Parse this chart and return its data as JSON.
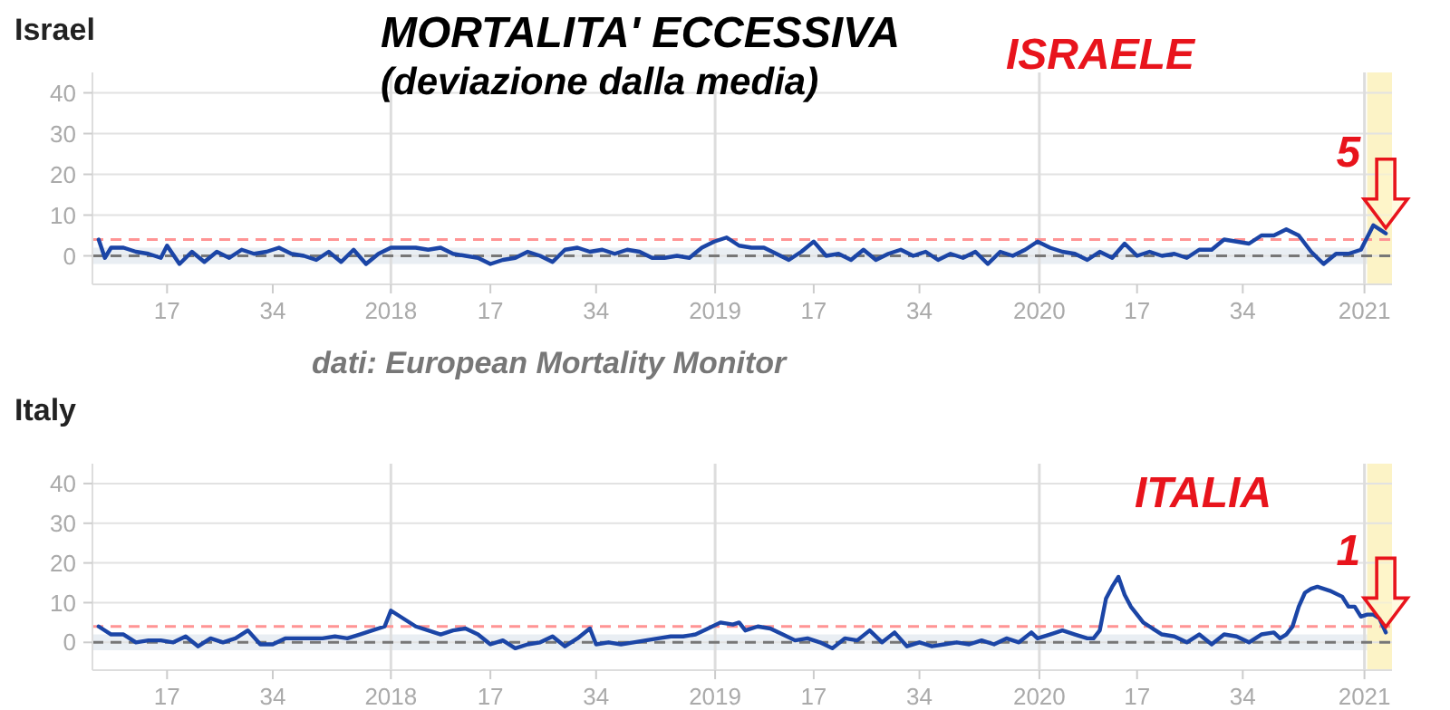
{
  "chart_data": [
    {
      "type": "line",
      "title": "Israel",
      "annotations": [
        "MORTALITA' ECCESSIVA",
        "(deviazione dalla media)",
        "ISRAELE",
        "dati: European Mortality Monitor",
        {
          "text": "5",
          "x": "2021-01-25",
          "y": 5.5
        }
      ],
      "series": [
        {
          "color": "#1b45a6",
          "x": [
            "2017-02-06",
            "2017-02-13",
            "2017-02-20",
            "2017-03-06",
            "2017-03-20",
            "2017-04-03",
            "2017-04-17",
            "2017-04-24",
            "2017-05-08",
            "2017-05-22",
            "2017-06-05",
            "2017-06-19",
            "2017-07-03",
            "2017-07-17",
            "2017-07-31",
            "2017-08-14",
            "2017-08-28",
            "2017-09-11",
            "2017-09-25",
            "2017-10-09",
            "2017-10-23",
            "2017-11-06",
            "2017-11-20",
            "2017-12-04",
            "2017-12-18",
            "2018-01-01",
            "2018-01-15",
            "2018-01-29",
            "2018-02-12",
            "2018-02-26",
            "2018-03-12",
            "2018-03-26",
            "2018-04-09",
            "2018-04-23",
            "2018-05-07",
            "2018-05-21",
            "2018-06-04",
            "2018-06-18",
            "2018-07-02",
            "2018-07-16",
            "2018-07-30",
            "2018-08-13",
            "2018-08-27",
            "2018-09-10",
            "2018-09-24",
            "2018-10-08",
            "2018-10-22",
            "2018-11-05",
            "2018-11-19",
            "2018-12-03",
            "2018-12-17",
            "2018-12-31",
            "2019-01-14",
            "2019-01-28",
            "2019-02-11",
            "2019-02-25",
            "2019-03-11",
            "2019-03-25",
            "2019-04-08",
            "2019-04-22",
            "2019-05-06",
            "2019-05-20",
            "2019-06-03",
            "2019-06-17",
            "2019-07-01",
            "2019-07-15",
            "2019-07-29",
            "2019-08-12",
            "2019-08-26",
            "2019-09-09",
            "2019-09-23",
            "2019-10-07",
            "2019-10-21",
            "2019-11-04",
            "2019-11-18",
            "2019-12-02",
            "2019-12-16",
            "2019-12-30",
            "2020-01-13",
            "2020-01-27",
            "2020-02-10",
            "2020-02-24",
            "2020-03-09",
            "2020-03-23",
            "2020-04-06",
            "2020-04-20",
            "2020-05-04",
            "2020-05-18",
            "2020-06-01",
            "2020-06-15",
            "2020-06-29",
            "2020-07-13",
            "2020-07-27",
            "2020-08-10",
            "2020-08-24",
            "2020-09-07",
            "2020-09-21",
            "2020-10-05",
            "2020-10-19",
            "2020-11-02",
            "2020-11-16",
            "2020-11-30",
            "2020-12-14",
            "2020-12-28",
            "2021-01-11",
            "2021-01-25"
          ],
          "values": [
            4,
            -0.5,
            2,
            2,
            1,
            0.5,
            -0.5,
            2.5,
            -2,
            1,
            -1.5,
            1,
            -0.5,
            1.5,
            0.5,
            1,
            2,
            0.5,
            0,
            -1,
            1,
            -1.5,
            1.5,
            -2,
            0.5,
            2,
            2,
            2,
            1.5,
            2,
            0.5,
            0,
            -0.5,
            -2,
            -1,
            -0.5,
            1,
            0,
            -1.5,
            1.5,
            2,
            1,
            1.5,
            0.5,
            1.5,
            1,
            -0.5,
            -0.5,
            0,
            -0.5,
            2,
            3.5,
            4.5,
            2.5,
            2,
            2,
            0.5,
            -1,
            1,
            3.5,
            0,
            0.5,
            -1,
            1.5,
            -1,
            0.5,
            1.5,
            0,
            1,
            -1,
            0.5,
            -0.5,
            1,
            -2,
            1,
            0,
            1.5,
            3.5,
            2,
            1,
            0.5,
            -1,
            1,
            -0.5,
            3,
            0,
            1,
            0,
            0.5,
            -0.5,
            1.5,
            1.5,
            4,
            3.5,
            3,
            5,
            5,
            6.5,
            5,
            1,
            -2,
            0.5,
            0.5,
            1.5,
            7.5,
            5.5
          ]
        }
      ],
      "xlim": [
        "2017-01-30",
        "2021-02-01"
      ],
      "ylim": [
        -7,
        45
      ],
      "xticks": [
        {
          "value": "2017-04-24",
          "label": "17"
        },
        {
          "value": "2017-08-21",
          "label": "34"
        },
        {
          "value": "2018-01-01",
          "label": "2018"
        },
        {
          "value": "2018-04-23",
          "label": "17"
        },
        {
          "value": "2018-08-20",
          "label": "34"
        },
        {
          "value": "2019-01-01",
          "label": "2019"
        },
        {
          "value": "2019-04-22",
          "label": "17"
        },
        {
          "value": "2019-08-19",
          "label": "34"
        },
        {
          "value": "2020-01-01",
          "label": "2020"
        },
        {
          "value": "2020-04-20",
          "label": "17"
        },
        {
          "value": "2020-08-17",
          "label": "34"
        },
        {
          "value": "2021-01-01",
          "label": "2021"
        }
      ],
      "yticks": [
        0,
        10,
        20,
        30,
        40
      ],
      "grid": "y",
      "ref_lines": [
        {
          "axis": "x",
          "value": "2018-01-01",
          "color": "#dddddd"
        },
        {
          "axis": "x",
          "value": "2019-01-01",
          "color": "#dddddd"
        },
        {
          "axis": "x",
          "value": "2020-01-01",
          "color": "#dddddd"
        },
        {
          "axis": "x",
          "value": "2021-01-01",
          "color": "#dddddd"
        },
        {
          "axis": "y",
          "value": 4,
          "color": "#ff9494",
          "line_style": "dashed"
        },
        {
          "axis": "y",
          "value": 0,
          "color": "#777777",
          "line_style": "dashed"
        }
      ],
      "bands": [
        {
          "axis": "y",
          "from": -2,
          "to": 2,
          "color": "#e9eef3"
        },
        {
          "axis": "x",
          "from": "2021-01-04",
          "to": "2021-02-01",
          "color": "#fcf3c6"
        }
      ]
    },
    {
      "type": "line",
      "title": "Italy",
      "annotations": [
        "ITALIA",
        {
          "text": "1",
          "x": "2021-01-25",
          "y": 2.5
        }
      ],
      "series": [
        {
          "color": "#1b45a6",
          "x": [
            "2017-02-06",
            "2017-02-20",
            "2017-03-06",
            "2017-03-20",
            "2017-04-03",
            "2017-04-17",
            "2017-05-01",
            "2017-05-15",
            "2017-05-29",
            "2017-06-12",
            "2017-06-26",
            "2017-07-10",
            "2017-07-24",
            "2017-08-07",
            "2017-08-21",
            "2017-09-04",
            "2017-09-18",
            "2017-10-02",
            "2017-10-16",
            "2017-10-30",
            "2017-11-13",
            "2017-11-27",
            "2017-12-11",
            "2017-12-25",
            "2018-01-01",
            "2018-01-15",
            "2018-01-29",
            "2018-02-12",
            "2018-02-26",
            "2018-03-12",
            "2018-03-26",
            "2018-04-09",
            "2018-04-23",
            "2018-05-07",
            "2018-05-21",
            "2018-06-04",
            "2018-06-18",
            "2018-07-02",
            "2018-07-16",
            "2018-07-30",
            "2018-08-13",
            "2018-08-20",
            "2018-09-03",
            "2018-09-17",
            "2018-10-01",
            "2018-10-15",
            "2018-10-29",
            "2018-11-12",
            "2018-11-26",
            "2018-12-10",
            "2018-12-24",
            "2019-01-07",
            "2019-01-21",
            "2019-01-28",
            "2019-02-04",
            "2019-02-18",
            "2019-03-04",
            "2019-03-18",
            "2019-04-01",
            "2019-04-15",
            "2019-04-29",
            "2019-05-13",
            "2019-05-27",
            "2019-06-10",
            "2019-06-24",
            "2019-07-08",
            "2019-07-22",
            "2019-08-05",
            "2019-08-19",
            "2019-09-02",
            "2019-09-16",
            "2019-09-30",
            "2019-10-14",
            "2019-10-28",
            "2019-11-11",
            "2019-11-25",
            "2019-12-09",
            "2019-12-23",
            "2019-12-30",
            "2020-01-13",
            "2020-01-27",
            "2020-02-10",
            "2020-02-24",
            "2020-03-02",
            "2020-03-09",
            "2020-03-16",
            "2020-03-23",
            "2020-03-30",
            "2020-04-06",
            "2020-04-13",
            "2020-04-20",
            "2020-04-27",
            "2020-05-04",
            "2020-05-18",
            "2020-06-01",
            "2020-06-15",
            "2020-06-29",
            "2020-07-13",
            "2020-07-27",
            "2020-08-10",
            "2020-08-24",
            "2020-09-07",
            "2020-09-21",
            "2020-09-28",
            "2020-10-05",
            "2020-10-12",
            "2020-10-19",
            "2020-10-26",
            "2020-11-02",
            "2020-11-09",
            "2020-11-23",
            "2020-12-07",
            "2020-12-14",
            "2020-12-21",
            "2020-12-28",
            "2021-01-04",
            "2021-01-11",
            "2021-01-18",
            "2021-01-25"
          ],
          "values": [
            4,
            2,
            2,
            0,
            0.5,
            0.5,
            0,
            1.5,
            -1,
            1,
            0,
            1,
            3,
            -0.5,
            -0.5,
            1,
            1,
            1,
            1,
            1.5,
            1,
            2,
            3,
            4,
            8,
            6,
            4,
            3,
            2,
            3,
            3.5,
            2,
            -0.5,
            0.5,
            -1.5,
            -0.5,
            0,
            1.5,
            -1,
            1,
            3.5,
            -0.5,
            0,
            -0.5,
            0,
            0.5,
            1,
            1.5,
            1.5,
            2,
            3.5,
            5,
            4.5,
            5,
            3,
            4,
            3.5,
            2,
            0.5,
            1,
            0,
            -1.5,
            1,
            0.5,
            3,
            0,
            2.5,
            -1,
            0,
            -1,
            -0.5,
            0,
            -0.5,
            0.5,
            -0.5,
            1,
            0,
            2.5,
            1,
            2,
            3,
            2,
            1,
            1,
            3,
            11,
            14,
            16.5,
            12,
            9,
            7,
            5,
            4,
            2,
            1.5,
            0,
            2,
            -0.5,
            2,
            1.5,
            0,
            2,
            2.5,
            1,
            2,
            4,
            9,
            12.5,
            13.5,
            14,
            13,
            11.5,
            9,
            9,
            6.5,
            7,
            7,
            6,
            2.5
          ]
        }
      ],
      "xlim": [
        "2017-01-30",
        "2021-02-01"
      ],
      "ylim": [
        -7,
        45
      ],
      "xticks": [
        {
          "value": "2017-04-24",
          "label": "17"
        },
        {
          "value": "2017-08-21",
          "label": "34"
        },
        {
          "value": "2018-01-01",
          "label": "2018"
        },
        {
          "value": "2018-04-23",
          "label": "17"
        },
        {
          "value": "2018-08-20",
          "label": "34"
        },
        {
          "value": "2019-01-01",
          "label": "2019"
        },
        {
          "value": "2019-04-22",
          "label": "17"
        },
        {
          "value": "2019-08-19",
          "label": "34"
        },
        {
          "value": "2020-01-01",
          "label": "2020"
        },
        {
          "value": "2020-04-20",
          "label": "17"
        },
        {
          "value": "2020-08-17",
          "label": "34"
        },
        {
          "value": "2021-01-01",
          "label": "2021"
        }
      ],
      "yticks": [
        0,
        10,
        20,
        30,
        40
      ],
      "grid": "y",
      "ref_lines": [
        {
          "axis": "x",
          "value": "2018-01-01",
          "color": "#dddddd"
        },
        {
          "axis": "x",
          "value": "2019-01-01",
          "color": "#dddddd"
        },
        {
          "axis": "x",
          "value": "2020-01-01",
          "color": "#dddddd"
        },
        {
          "axis": "x",
          "value": "2021-01-01",
          "color": "#dddddd"
        },
        {
          "axis": "y",
          "value": 4,
          "color": "#ff9494",
          "line_style": "dashed"
        },
        {
          "axis": "y",
          "value": 0,
          "color": "#777777",
          "line_style": "dashed"
        }
      ],
      "bands": [
        {
          "axis": "y",
          "from": -2,
          "to": 2,
          "color": "#e9eef3"
        },
        {
          "axis": "x",
          "from": "2021-01-04",
          "to": "2021-02-01",
          "color": "#fcf3c6"
        }
      ]
    }
  ]
}
